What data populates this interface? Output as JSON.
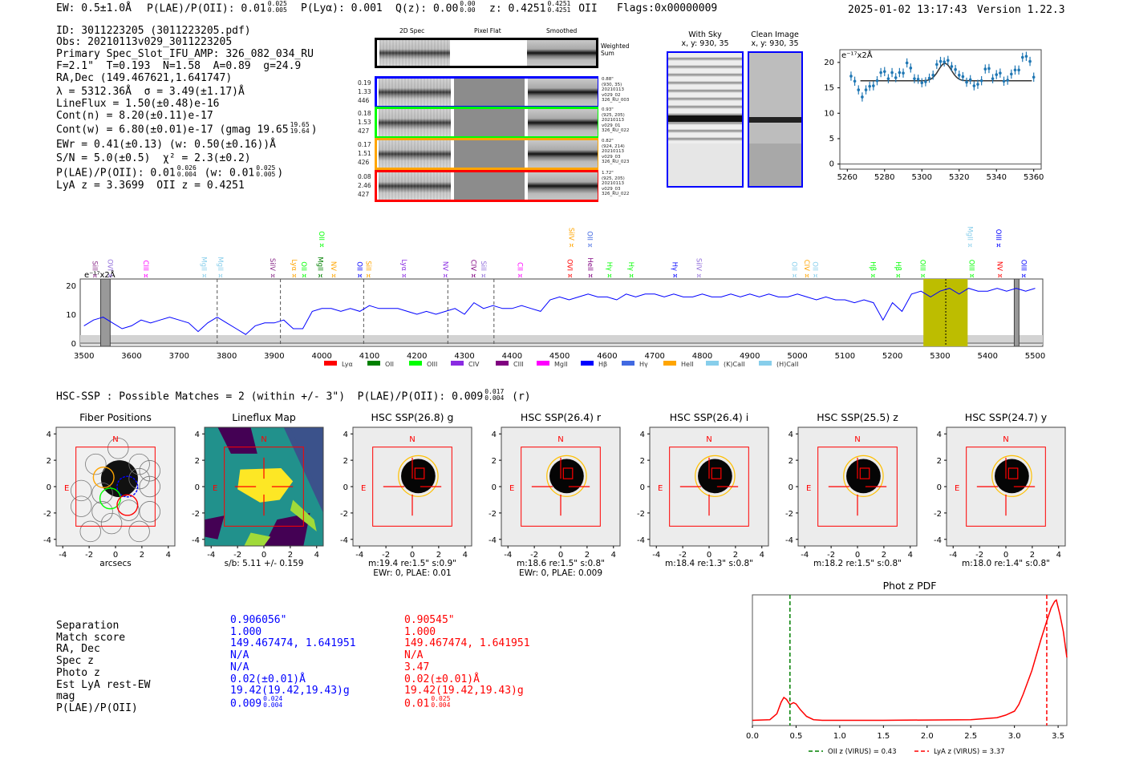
{
  "header": {
    "ew": "EW: 0.5±1.0Å",
    "plae_label": "P(LAE)/P(OII): 0.01",
    "plae_hi": "0.025",
    "plae_lo": "0.005",
    "plya": "P(Lyα): 0.001",
    "qz_label": "Q(z): 0.00",
    "qz_hi": "0.00",
    "qz_lo": "0.00",
    "z_label": "z: 0.4251",
    "z_hi": "0.4251",
    "z_lo": "0.4251",
    "z_line": "OII",
    "flags": "Flags:0x00000009",
    "datetime": "2025-01-02 13:17:43",
    "version": "Version 1.22.3"
  },
  "info": {
    "id": "ID: 3011223205 (3011223205.pdf)",
    "obs": "Obs: 20210113v029_3011223205",
    "primary": "Primary Spec_Slot_IFU_AMP: 326_082_034_RU",
    "params": "F=2.1\"  T=0.193  N=1.58  A=0.89  g=24.9",
    "radec": "RA,Dec (149.467621,1.641747)",
    "lambda": "λ = 5312.36Å  σ = 3.49(±1.17)Å",
    "lineflux": "LineFlux = 1.50(±0.48)e-16",
    "contn": "Cont(n) = 8.20(±0.11)e-17",
    "contw": "Cont(w) = 6.80(±0.01)e-17 (gmag 19.65",
    "contw_hi": "19.65",
    "contw_lo": "19.64",
    "contw_tail": ")",
    "ewr": "EWr = 0.41(±0.13) (w: 0.50(±0.16))Å",
    "sn": "S/N = 5.0(±0.5)  χ² = 2.3(±0.2)",
    "plae": "P(LAE)/P(OII): 0.01",
    "plae_hi": "0.026",
    "plae_lo": "0.004",
    "plae_mid": "(w: 0.01",
    "plae_w_hi": "0.025",
    "plae_w_lo": "0.005",
    "plae_tail": ")",
    "z": "LyA z = 3.3699  OII z = 0.4251"
  },
  "spec2d": {
    "columns": [
      "2D Spec",
      "Pixel Flat",
      "Smoothed"
    ],
    "weighted_sum": "Weighted Sum",
    "rows": [
      {
        "color": "#0000ff",
        "nums": [
          "0.19",
          "1.33",
          "446"
        ],
        "info": [
          "0.88\"",
          "(930, 35)",
          "20210113",
          "v029_02",
          "326_RU_003"
        ]
      },
      {
        "color": "#00ff00",
        "nums": [
          "0.18",
          "1.53",
          "427"
        ],
        "info": [
          "0.93\"",
          "(925, 205)",
          "20210113",
          "v029_01",
          "326_RU_022"
        ]
      },
      {
        "color": "#ffa500",
        "nums": [
          "0.17",
          "1.51",
          "426"
        ],
        "info": [
          "0.82\"",
          "(924, 214)",
          "20210113",
          "v029_03",
          "326_RU_023"
        ]
      },
      {
        "color": "#ff0000",
        "nums": [
          "0.08",
          "2.46",
          "427"
        ],
        "info": [
          "1.72\"",
          "(925, 205)",
          "20210113",
          "v029_03",
          "326_RU_022"
        ]
      }
    ]
  },
  "cutouts": {
    "with_sky": {
      "title": "With Sky",
      "coords": "x, y: 930, 35"
    },
    "clean": {
      "title": "Clean Image",
      "coords": "x, y: 930, 35"
    }
  },
  "chart_data": [
    {
      "type": "scatter",
      "title": "",
      "unit_label": "e⁻¹⁷x2Å",
      "xlim": [
        5256,
        5364
      ],
      "ylim": [
        -1,
        22.5
      ],
      "xticks": [
        5260,
        5280,
        5300,
        5320,
        5340,
        5360
      ],
      "yticks": [
        0,
        5,
        10,
        15,
        20
      ],
      "x": [
        5262,
        5264,
        5266,
        5268,
        5270,
        5272,
        5274,
        5276,
        5278,
        5280,
        5282,
        5284,
        5286,
        5288,
        5290,
        5292,
        5294,
        5296,
        5298,
        5300,
        5302,
        5304,
        5306,
        5308,
        5310,
        5312,
        5314,
        5316,
        5318,
        5320,
        5322,
        5324,
        5326,
        5328,
        5330,
        5332,
        5334,
        5336,
        5338,
        5340,
        5342,
        5344,
        5346,
        5348,
        5350,
        5352,
        5354,
        5356,
        5358,
        5360
      ],
      "y": [
        17.3,
        16.3,
        14.6,
        13.2,
        14.6,
        15.3,
        15.4,
        16.4,
        18.0,
        18.2,
        16.8,
        18.0,
        17.0,
        18.0,
        17.9,
        19.9,
        18.9,
        16.8,
        16.7,
        16.0,
        16.2,
        16.9,
        17.5,
        19.6,
        20.2,
        20.1,
        20.4,
        19.2,
        18.6,
        17.5,
        17.2,
        16.1,
        16.6,
        15.4,
        15.7,
        16.4,
        18.7,
        18.8,
        16.8,
        17.6,
        17.9,
        16.3,
        16.5,
        17.7,
        18.5,
        18.5,
        21.0,
        21.2,
        20.2,
        17.1
      ],
      "fit": {
        "continuum": 16.4,
        "center": 5312.36,
        "amplitude": 3.4,
        "sigma": 3.49,
        "range": [
          5267,
          5359
        ]
      }
    },
    {
      "type": "line",
      "unit_label": "e⁻¹⁷x2Å",
      "xlim": [
        3492,
        5516
      ],
      "ylim": [
        -1,
        22
      ],
      "xticks": [
        3500,
        3600,
        3700,
        3800,
        3900,
        4000,
        4100,
        4200,
        4300,
        4400,
        4500,
        4600,
        4700,
        4800,
        4900,
        5000,
        5100,
        5200,
        5300,
        5400,
        5500
      ],
      "yticks": [
        0,
        10,
        20
      ],
      "x_start": 3500,
      "x_step": 20,
      "flux": [
        6,
        8,
        9,
        7,
        5,
        6,
        8,
        7,
        8,
        9,
        8,
        7,
        4,
        7,
        9,
        7,
        5,
        3,
        6,
        7,
        7,
        8,
        5,
        5,
        11,
        12,
        12,
        11,
        12,
        11,
        13,
        12,
        12,
        12,
        11,
        10,
        11,
        10,
        11,
        12,
        10,
        14,
        12,
        13,
        12,
        12,
        13,
        12,
        11,
        15,
        16,
        15,
        16,
        17,
        16,
        16,
        15,
        17,
        16,
        17,
        17,
        16,
        17,
        16,
        16,
        17,
        16,
        16,
        17,
        16,
        17,
        16,
        17,
        16,
        16,
        17,
        16,
        15,
        16,
        15,
        15,
        14,
        15,
        14,
        8,
        14,
        11,
        17,
        18,
        16,
        18,
        19,
        17,
        19,
        18,
        18,
        19,
        18,
        19,
        18,
        19
      ],
      "dashed_lines": [
        3780,
        3913,
        4088,
        4265,
        4362
      ],
      "highlight_band": [
        5265,
        5358
      ],
      "highlight_center": 5312,
      "masked_bands": [
        [
          3535,
          3555
        ],
        [
          5456,
          5466
        ]
      ],
      "line_labels": [
        {
          "w": 3523,
          "name": "SiII",
          "color": "#8b2f8b",
          "row": 0
        },
        {
          "w": 3555,
          "name": "OVI",
          "color": "#9370db",
          "row": 0
        },
        {
          "w": 3630,
          "name": "CIII",
          "color": "#ff00ff",
          "row": 0
        },
        {
          "w": 3753,
          "name": "MgII",
          "color": "#87ceeb",
          "row": 0
        },
        {
          "w": 3787,
          "name": "MgII",
          "color": "#87ceeb",
          "row": 0
        },
        {
          "w": 3897,
          "name": "SiIV",
          "color": "#8b2f8b",
          "row": 0
        },
        {
          "w": 3942,
          "name": "Lyα",
          "color": "#ffa500",
          "row": 0
        },
        {
          "w": 3963,
          "name": "OII",
          "color": "#00ff00",
          "row": 0
        },
        {
          "w": 3997,
          "name": "MgII",
          "color": "#008000",
          "row": 0
        },
        {
          "w": 4000,
          "name": "OII",
          "color": "#00ff00",
          "row": 1
        },
        {
          "w": 4025,
          "name": "NV",
          "color": "#ffa500",
          "row": 0
        },
        {
          "w": 4080,
          "name": "OII",
          "color": "#0000ff",
          "row": 0
        },
        {
          "w": 4098,
          "name": "SiII",
          "color": "#ffa500",
          "row": 0
        },
        {
          "w": 4173,
          "name": "Lyα",
          "color": "#8a2be2",
          "row": 0
        },
        {
          "w": 4260,
          "name": "NV",
          "color": "#8a2be2",
          "row": 0
        },
        {
          "w": 4319,
          "name": "CIV",
          "color": "#800080",
          "row": 0
        },
        {
          "w": 4340,
          "name": "SiII",
          "color": "#9370db",
          "row": 0
        },
        {
          "w": 4417,
          "name": "CII",
          "color": "#ff00ff",
          "row": 0
        },
        {
          "w": 4522,
          "name": "OVI",
          "color": "#ff0000",
          "row": 0
        },
        {
          "w": 4525,
          "name": "SiIV",
          "color": "#ffa500",
          "row": 1
        },
        {
          "w": 4565,
          "name": "HeII",
          "color": "#800080",
          "row": 0
        },
        {
          "w": 4564,
          "name": "OII",
          "color": "#4169e1",
          "row": 1
        },
        {
          "w": 4605,
          "name": "Hγ",
          "color": "#00ff00",
          "row": 0
        },
        {
          "w": 4651,
          "name": "Hγ",
          "color": "#00ff00",
          "row": 0
        },
        {
          "w": 4743,
          "name": "Hγ",
          "color": "#0000ff",
          "row": 0
        },
        {
          "w": 4793,
          "name": "SiIV",
          "color": "#9370db",
          "row": 0
        },
        {
          "w": 4994,
          "name": "OII",
          "color": "#87ceeb",
          "row": 0
        },
        {
          "w": 5020,
          "name": "CIV",
          "color": "#ffa500",
          "row": 0
        },
        {
          "w": 5038,
          "name": "OII",
          "color": "#87ceeb",
          "row": 0
        },
        {
          "w": 5159,
          "name": "Hβ",
          "color": "#00ff00",
          "row": 0
        },
        {
          "w": 5212,
          "name": "Hβ",
          "color": "#00ff00",
          "row": 0
        },
        {
          "w": 5264,
          "name": "OIII",
          "color": "#00ff00",
          "row": 0
        },
        {
          "w": 5367,
          "name": "OIII",
          "color": "#00ff00",
          "row": 0
        },
        {
          "w": 5363,
          "name": "MgII",
          "color": "#87ceeb",
          "row": 1
        },
        {
          "w": 5426,
          "name": "NV",
          "color": "#ff0000",
          "row": 0
        },
        {
          "w": 5423,
          "name": "OIII",
          "color": "#0000ff",
          "row": 1
        },
        {
          "w": 5476,
          "name": "OIII",
          "color": "#0000ff",
          "row": 0
        }
      ],
      "legend": [
        {
          "name": "Lyα",
          "color": "#ff0000"
        },
        {
          "name": "OII",
          "color": "#008000"
        },
        {
          "name": "OIII",
          "color": "#00ff00"
        },
        {
          "name": "CIV",
          "color": "#8a2be2"
        },
        {
          "name": "CIII",
          "color": "#800080"
        },
        {
          "name": "MgII",
          "color": "#ff00ff"
        },
        {
          "name": "Hβ",
          "color": "#0000ff"
        },
        {
          "name": "Hγ",
          "color": "#4169e1"
        },
        {
          "name": "HeII",
          "color": "#ffa500"
        },
        {
          "name": "(K)CaII",
          "color": "#87ceeb"
        },
        {
          "name": "(H)CaII",
          "color": "#87ceeb"
        }
      ]
    },
    {
      "type": "line",
      "title": "Phot z PDF",
      "xlim": [
        0,
        3.6
      ],
      "ylim": [
        0,
        1
      ],
      "xticks": [
        "0.0",
        "0.5",
        "1.0",
        "1.5",
        "2.0",
        "2.5",
        "3.0",
        "3.5"
      ],
      "z": [
        0.0,
        0.2,
        0.28,
        0.33,
        0.36,
        0.39,
        0.43,
        0.47,
        0.5,
        0.55,
        0.62,
        0.7,
        0.8,
        1.5,
        2.5,
        2.8,
        2.9,
        3.0,
        3.05,
        3.1,
        3.2,
        3.3,
        3.37,
        3.42,
        3.46,
        3.48,
        3.52,
        3.56,
        3.6
      ],
      "pdf": [
        0.04,
        0.045,
        0.09,
        0.18,
        0.215,
        0.2,
        0.16,
        0.175,
        0.165,
        0.12,
        0.07,
        0.045,
        0.04,
        0.04,
        0.045,
        0.06,
        0.08,
        0.11,
        0.16,
        0.24,
        0.42,
        0.65,
        0.8,
        0.9,
        0.95,
        0.96,
        0.85,
        0.72,
        0.52
      ],
      "vlines": [
        {
          "z": 0.43,
          "color": "#008000",
          "label": "OII z (VIRUS) = 0.43"
        },
        {
          "z": 3.37,
          "color": "#ff0000",
          "label": "LyA z (VIRUS) = 3.37"
        }
      ]
    }
  ],
  "hsc": {
    "title": "HSC-SSP : Possible Matches = 2 (within +/- 3\")  P(LAE)/P(OII): 0.009",
    "title_hi": "0.017",
    "title_lo": "0.004",
    "title_tail": "(r)",
    "axis_ticks": [
      "-4",
      "-2",
      "0",
      "2",
      "4"
    ],
    "north": "N",
    "east": "E",
    "panels": [
      {
        "kind": "fiber",
        "title": "Fiber Positions",
        "cap1": "arcsecs",
        "cap2": ""
      },
      {
        "kind": "lineflux",
        "title": "Lineflux Map",
        "cap1": "s/b: 5.11 +/- 0.159",
        "cap2": ""
      },
      {
        "kind": "band",
        "title": "HSC SSP(26.8) g",
        "cap1": "m:19.4  re:1.5\"  s:0.9\"",
        "cap2": "EWr: 0, PLAE: 0.01"
      },
      {
        "kind": "band",
        "title": "HSC SSP(26.4) r",
        "cap1": "m:18.6  re:1.5\"  s:0.8\"",
        "cap2": "EWr: 0, PLAE: 0.009"
      },
      {
        "kind": "band",
        "title": "HSC SSP(26.4) i",
        "cap1": "m:18.4  re:1.3\"  s:0.8\"",
        "cap2": ""
      },
      {
        "kind": "band",
        "title": "HSC SSP(25.5) z",
        "cap1": "m:18.2  re:1.5\"  s:0.8\"",
        "cap2": ""
      },
      {
        "kind": "band",
        "title": "HSC SSP(24.7) y",
        "cap1": "m:18.0  re:1.4\"  s:0.8\"",
        "cap2": ""
      }
    ]
  },
  "matches": {
    "labels": [
      "Separation",
      "Match score",
      "RA, Dec",
      "Spec z",
      "Photo z",
      "Est LyA rest-EW",
      "mag",
      "P(LAE)/P(OII)"
    ],
    "blue": {
      "color": "#0000ff",
      "values": [
        "0.906056\"",
        "1.000",
        "149.467474, 1.641951",
        "N/A",
        "N/A",
        "0.02(±0.01)Å",
        "19.42(19.42,19.43)g",
        "0.009"
      ],
      "plae_hi": "0.024",
      "plae_lo": "0.004"
    },
    "red": {
      "color": "#ff0000",
      "values": [
        "0.90545\"",
        "1.000",
        "149.467474, 1.641951",
        "N/A",
        "3.47",
        "0.02(±0.01)Å",
        "19.42(19.42,19.43)g",
        "0.01"
      ],
      "plae_hi": "0.025",
      "plae_lo": "0.004"
    }
  }
}
